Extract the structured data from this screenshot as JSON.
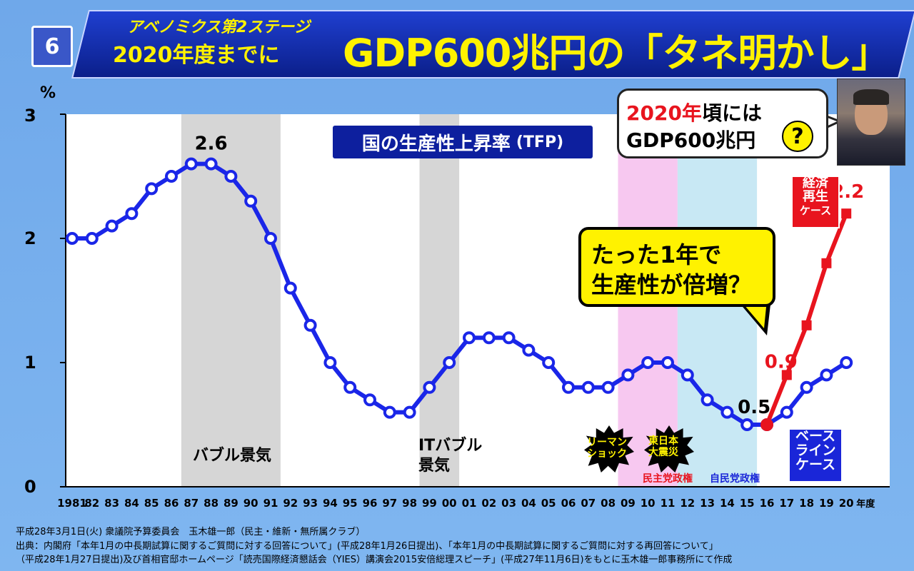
{
  "header": {
    "panel_number": "6",
    "subtitle_line1": "アベノミクス第2ステージ",
    "subtitle_line2": "2020年度までに",
    "title": "GDP600兆円の「タネ明かし」"
  },
  "annotations": {
    "tfp_label": "国の生産性上昇率",
    "tfp_abbr": "(TFP)",
    "bubble_2020_line1_year": "2020年",
    "bubble_2020_line1_rest": "頃には",
    "bubble_2020_line2": "GDP600兆円",
    "bubble_question": "?",
    "yellow_bubble_line1": "たった1年で",
    "yellow_bubble_line2": "生産性が倍増？",
    "case_red": [
      "経済",
      "再生",
      "ケース"
    ],
    "case_blue": [
      "ベース",
      "ライン",
      "ケース"
    ],
    "bubble_period": "バブル景気",
    "it_bubble_line1": "ITバブル",
    "it_bubble_line2": "景気",
    "lehman": [
      "リーマン",
      "ショック"
    ],
    "earthquake": [
      "東日本",
      "大震災"
    ],
    "dpj_gov": "民主党政権",
    "ldp_gov": "自民党政権"
  },
  "source": {
    "line1": "平成28年3月1日(火) 衆議院予算委員会　玉木雄一郎（民主・維新・無所属クラブ）",
    "line2": "出典：内閣府「本年1月の中長期試算に関するご質問に対する回答について」(平成28年1月26日提出)、「本年1月の中長期試算に関するご質問に対する再回答について」",
    "line3": "（平成28年1月27日提出)及び首相官邸ホームページ「読売国際経済懇話会（YIES）講演会2015安倍総理スピーチ」(平成27年11月6日)をもとに玉木雄一郎事務所にて作成"
  },
  "colors": {
    "background": "#7fb6f0",
    "plot_bg": "#ffffff",
    "baseline_line": "#1a26e8",
    "recovery_line": "#e8141e",
    "bubble_shade": "#d6d6d6",
    "dpj_shade": "#f7c8f0",
    "ldp_shade": "#c8e8f4",
    "banner": "#0d1f9e",
    "accent_yellow": "#fff200"
  },
  "chart_data": {
    "type": "line",
    "ylabel": "%",
    "ylim": [
      0,
      3
    ],
    "yticks": [
      "0",
      "1",
      "2",
      "3"
    ],
    "x_unit_label": "年度",
    "categories": [
      "1981",
      "82",
      "83",
      "84",
      "85",
      "86",
      "87",
      "88",
      "89",
      "90",
      "91",
      "92",
      "93",
      "94",
      "95",
      "96",
      "97",
      "98",
      "99",
      "00",
      "01",
      "02",
      "03",
      "04",
      "05",
      "06",
      "07",
      "08",
      "09",
      "10",
      "11",
      "12",
      "13",
      "14",
      "15",
      "16",
      "17",
      "18",
      "19",
      "20"
    ],
    "series": [
      {
        "name": "ベースラインケース",
        "color": "#1a26e8",
        "values": [
          2.0,
          2.0,
          2.1,
          2.2,
          2.4,
          2.5,
          2.6,
          2.6,
          2.5,
          2.3,
          2.0,
          1.6,
          1.3,
          1.0,
          0.8,
          0.7,
          0.6,
          0.6,
          0.8,
          1.0,
          1.2,
          1.2,
          1.2,
          1.1,
          1.0,
          0.8,
          0.8,
          0.8,
          0.9,
          1.0,
          1.0,
          0.9,
          0.7,
          0.6,
          0.5,
          0.5,
          0.6,
          0.8,
          0.9,
          1.0
        ]
      },
      {
        "name": "経済再生ケース",
        "color": "#e8141e",
        "values": [
          null,
          null,
          null,
          null,
          null,
          null,
          null,
          null,
          null,
          null,
          null,
          null,
          null,
          null,
          null,
          null,
          null,
          null,
          null,
          null,
          null,
          null,
          null,
          null,
          null,
          null,
          null,
          null,
          null,
          null,
          null,
          null,
          null,
          null,
          null,
          0.5,
          0.9,
          1.3,
          1.8,
          2.2
        ]
      }
    ],
    "data_labels": [
      {
        "category": "88",
        "series": 0,
        "text": "2.6"
      },
      {
        "category": "15",
        "series": 0,
        "text": "0.5"
      },
      {
        "category": "17",
        "series": 1,
        "text": "0.9"
      },
      {
        "category": "20",
        "series": 1,
        "text": "2.2"
      }
    ],
    "shaded_periods": [
      {
        "label": "バブル景気",
        "from": "87",
        "to": "91",
        "color": "#d6d6d6"
      },
      {
        "label": "ITバブル景気",
        "from": "99",
        "to": "00",
        "color": "#d6d6d6"
      },
      {
        "label": "民主党政権",
        "from": "09",
        "to": "11",
        "color": "#f7c8f0"
      },
      {
        "label": "自民党政権",
        "from": "12",
        "to": "15",
        "color": "#c8e8f4"
      }
    ],
    "grid": false
  }
}
